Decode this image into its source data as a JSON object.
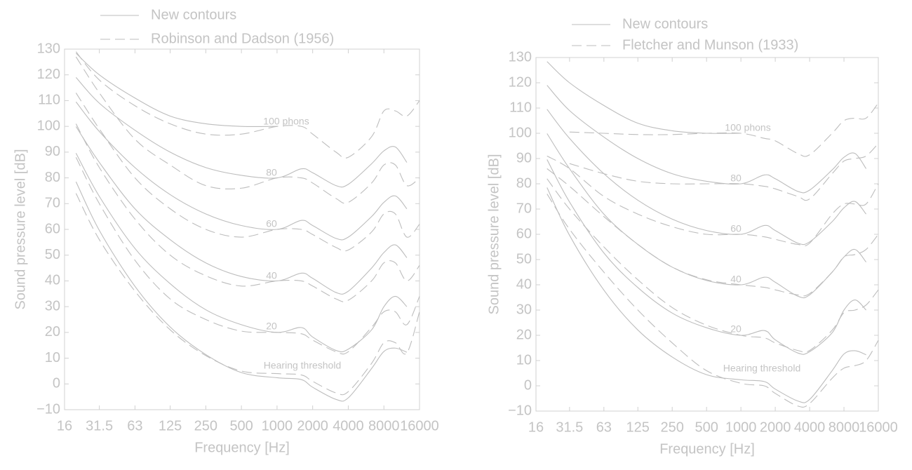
{
  "chart_data": [
    {
      "type": "line",
      "xscale": "log",
      "xlabel": "Frequency [Hz]",
      "ylabel": "Sound pressure level [dB]",
      "x": [
        20,
        31.5,
        63,
        125,
        250,
        500,
        1000,
        1600,
        2000,
        3150,
        4000,
        6300,
        8000,
        10000,
        12500,
        16000
      ],
      "xlim": [
        16,
        16000
      ],
      "xticks": [
        16,
        31.5,
        63,
        125,
        250,
        500,
        1000,
        2000,
        4000,
        8000,
        16000
      ],
      "ylim": [
        -10,
        130
      ],
      "yticks": [
        {
          "value": -10,
          "label": "−10"
        },
        0,
        10,
        20,
        30,
        40,
        50,
        60,
        70,
        80,
        90,
        100,
        110,
        120,
        130
      ],
      "annotations": [
        "100 phons",
        "80",
        "60",
        "40",
        "20",
        "Hearing threshold"
      ],
      "legend": [
        {
          "name": "New contours",
          "style": "solid"
        },
        {
          "name": "Robinson and Dadson (1956)",
          "style": "dashed"
        }
      ],
      "color": "#bdbdbd",
      "series": [
        {
          "style": "solid",
          "values": [
            78.5,
            59.6,
            37.9,
            22.1,
            11.4,
            4.4,
            2.4,
            1.7,
            -1.3,
            -6.0,
            -5.4,
            6.0,
            12.6,
            13.9,
            12.3,
            null
          ]
        },
        {
          "style": "solid",
          "values": [
            89.6,
            72.8,
            52.6,
            38.9,
            28.8,
            23.0,
            20.0,
            21.9,
            18.2,
            13.0,
            13.5,
            21.0,
            30.0,
            34.0,
            30.0,
            null
          ]
        },
        {
          "style": "solid",
          "values": [
            99.9,
            86.0,
            68.0,
            56.0,
            47.0,
            41.7,
            40.0,
            43.0,
            41.0,
            35.5,
            36.0,
            45.0,
            51.0,
            54.0,
            49.0,
            null
          ]
        },
        {
          "style": "solid",
          "values": [
            109.5,
            98.0,
            84.0,
            73.5,
            66.0,
            61.5,
            60.0,
            63.5,
            61.5,
            56.5,
            57.0,
            65.0,
            70.5,
            73.0,
            68.0,
            null
          ]
        },
        {
          "style": "solid",
          "values": [
            119.0,
            109.0,
            98.5,
            90.0,
            84.0,
            81.0,
            80.0,
            83.5,
            82.0,
            77.0,
            77.5,
            85.5,
            90.5,
            92.0,
            86.0,
            null
          ]
        },
        {
          "style": "solid",
          "values": [
            128.4,
            120.0,
            111.0,
            104.0,
            101.0,
            100.0,
            100.0,
            null,
            null,
            null,
            null,
            null,
            null,
            null,
            null,
            null
          ]
        },
        {
          "style": "dashed",
          "values": [
            74,
            56,
            36,
            21,
            11,
            5,
            4,
            3.5,
            1,
            -3.5,
            -3,
            8,
            16,
            16,
            12,
            28
          ]
        },
        {
          "style": "dashed",
          "values": [
            88,
            70,
            48,
            33,
            25,
            20.5,
            20,
            19.5,
            17,
            12.5,
            12.5,
            22,
            28,
            28,
            23,
            34
          ]
        },
        {
          "style": "dashed",
          "values": [
            101,
            84,
            64,
            50,
            42,
            38,
            40,
            40,
            38,
            33,
            32.5,
            40,
            47,
            47,
            40,
            46
          ]
        },
        {
          "style": "dashed",
          "values": [
            113,
            99,
            80,
            68,
            60,
            57,
            60,
            60,
            58,
            53,
            52,
            59,
            66,
            66,
            57,
            62
          ]
        },
        {
          "style": "dashed",
          "values": [
            127,
            113,
            95,
            85,
            77,
            76,
            80,
            80,
            78,
            72,
            70.5,
            78,
            85,
            85,
            77,
            80
          ]
        },
        {
          "style": "dashed",
          "values": [
            129,
            118,
            108,
            101,
            97,
            97,
            100,
            100,
            97,
            90,
            88,
            96,
            106,
            106,
            104,
            110
          ]
        }
      ]
    },
    {
      "type": "line",
      "xscale": "log",
      "xlabel": "Frequency [Hz]",
      "ylabel": "Sound pressure level [dB]",
      "x": [
        20,
        31.5,
        63,
        125,
        250,
        500,
        1000,
        1600,
        2000,
        3150,
        4000,
        6300,
        8000,
        10000,
        12500,
        16000
      ],
      "xlim": [
        16,
        16000
      ],
      "xticks": [
        16,
        31.5,
        63,
        125,
        250,
        500,
        1000,
        2000,
        4000,
        8000,
        16000
      ],
      "ylim": [
        -10,
        130
      ],
      "yticks": [
        {
          "value": -10,
          "label": "−10"
        },
        0,
        10,
        20,
        30,
        40,
        50,
        60,
        70,
        80,
        90,
        100,
        110,
        120,
        130
      ],
      "annotations": [
        "100 phons",
        "80",
        "60",
        "40",
        "20",
        "Hearing threshold"
      ],
      "legend": [
        {
          "name": "New contours",
          "style": "solid"
        },
        {
          "name": "Fletcher and Munson (1933)",
          "style": "dashed"
        }
      ],
      "color": "#bdbdbd",
      "series": [
        {
          "style": "solid",
          "values": [
            78.5,
            59.6,
            37.9,
            22.1,
            11.4,
            4.4,
            2.4,
            1.7,
            -1.3,
            -6.0,
            -5.4,
            6.0,
            12.6,
            13.9,
            12.3,
            null
          ]
        },
        {
          "style": "solid",
          "values": [
            89.6,
            72.8,
            52.6,
            38.9,
            28.8,
            23.0,
            20.0,
            21.9,
            18.2,
            13.0,
            13.5,
            21.0,
            30.0,
            34.0,
            30.0,
            null
          ]
        },
        {
          "style": "solid",
          "values": [
            99.9,
            86.0,
            68.0,
            56.0,
            47.0,
            41.7,
            40.0,
            43.0,
            41.0,
            35.5,
            36.0,
            45.0,
            51.0,
            54.0,
            49.0,
            null
          ]
        },
        {
          "style": "solid",
          "values": [
            109.5,
            98.0,
            84.0,
            73.5,
            66.0,
            61.5,
            60.0,
            63.5,
            61.5,
            56.5,
            57.0,
            65.0,
            70.5,
            73.0,
            68.0,
            null
          ]
        },
        {
          "style": "solid",
          "values": [
            119.0,
            109.0,
            98.5,
            90.0,
            84.0,
            81.0,
            80.0,
            83.5,
            82.0,
            77.0,
            77.5,
            85.5,
            90.5,
            92.0,
            86.0,
            null
          ]
        },
        {
          "style": "solid",
          "values": [
            128.4,
            120.0,
            111.0,
            104.0,
            101.0,
            100.0,
            100.0,
            null,
            null,
            null,
            null,
            null,
            null,
            null,
            null,
            null
          ]
        },
        {
          "style": "dashed",
          "values": [
            76,
            62,
            45,
            30,
            17,
            6,
            1,
            0,
            -3,
            -8,
            -7,
            3,
            7,
            8,
            10,
            18
          ]
        },
        {
          "style": "dashed",
          "values": [
            82,
            70,
            55,
            42,
            31,
            24,
            20,
            19,
            17,
            14,
            14,
            22,
            29,
            30,
            32,
            38
          ]
        },
        {
          "style": "dashed",
          "values": [
            86,
            79,
            67,
            56,
            47,
            42,
            40,
            39,
            38,
            36,
            36.5,
            45,
            51,
            52,
            54,
            60
          ]
        },
        {
          "style": "dashed",
          "values": [
            91,
            86,
            75,
            68,
            63,
            60,
            60,
            59,
            58,
            56,
            56.5,
            68,
            72,
            72,
            72,
            80
          ]
        },
        {
          "style": "dashed",
          "values": [
            null,
            88,
            84,
            81,
            80,
            80,
            80,
            79,
            78,
            75,
            74,
            84,
            89,
            90,
            91,
            96
          ]
        },
        {
          "style": "dashed",
          "values": [
            null,
            100.5,
            100,
            99.5,
            99.5,
            100,
            100,
            98,
            97,
            92,
            91.5,
            100,
            105,
            106,
            106,
            112
          ]
        }
      ]
    }
  ]
}
